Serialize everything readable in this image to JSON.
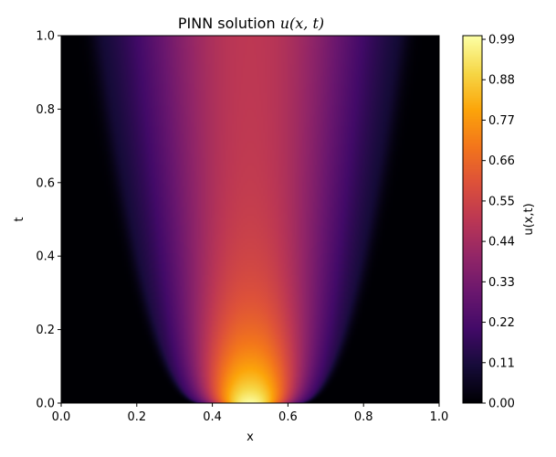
{
  "chart_data": {
    "type": "heatmap",
    "title": "PINN solution ",
    "title_math": "u(x, t)",
    "xlabel": "x",
    "ylabel": "t",
    "xlim": [
      0.0,
      1.0
    ],
    "ylim": [
      0.0,
      1.0
    ],
    "x_ticks": [
      "0.0",
      "0.2",
      "0.4",
      "0.6",
      "0.8",
      "1.0"
    ],
    "y_ticks": [
      "0.0",
      "0.2",
      "0.4",
      "0.6",
      "0.8",
      "1.0"
    ],
    "colorbar": {
      "label": "u(x,t)",
      "colormap": "inferno",
      "range": [
        0.0,
        1.0
      ],
      "ticks": [
        "0.00",
        "0.11",
        "0.22",
        "0.33",
        "0.44",
        "0.55",
        "0.66",
        "0.77",
        "0.88",
        "0.99"
      ]
    },
    "field": {
      "description_values": "u(x,t): peak ≈1.0 at x=0.5 near t=0, spreading outward and decaying to ≈0.5 at t=1; ≈0 outside the widening band",
      "center_x": 0.5,
      "peak_value_t0": 1.0,
      "center_value_t1": 0.5,
      "half_width_t0": 0.1,
      "half_width_t1": 0.31
    },
    "grid": false
  }
}
